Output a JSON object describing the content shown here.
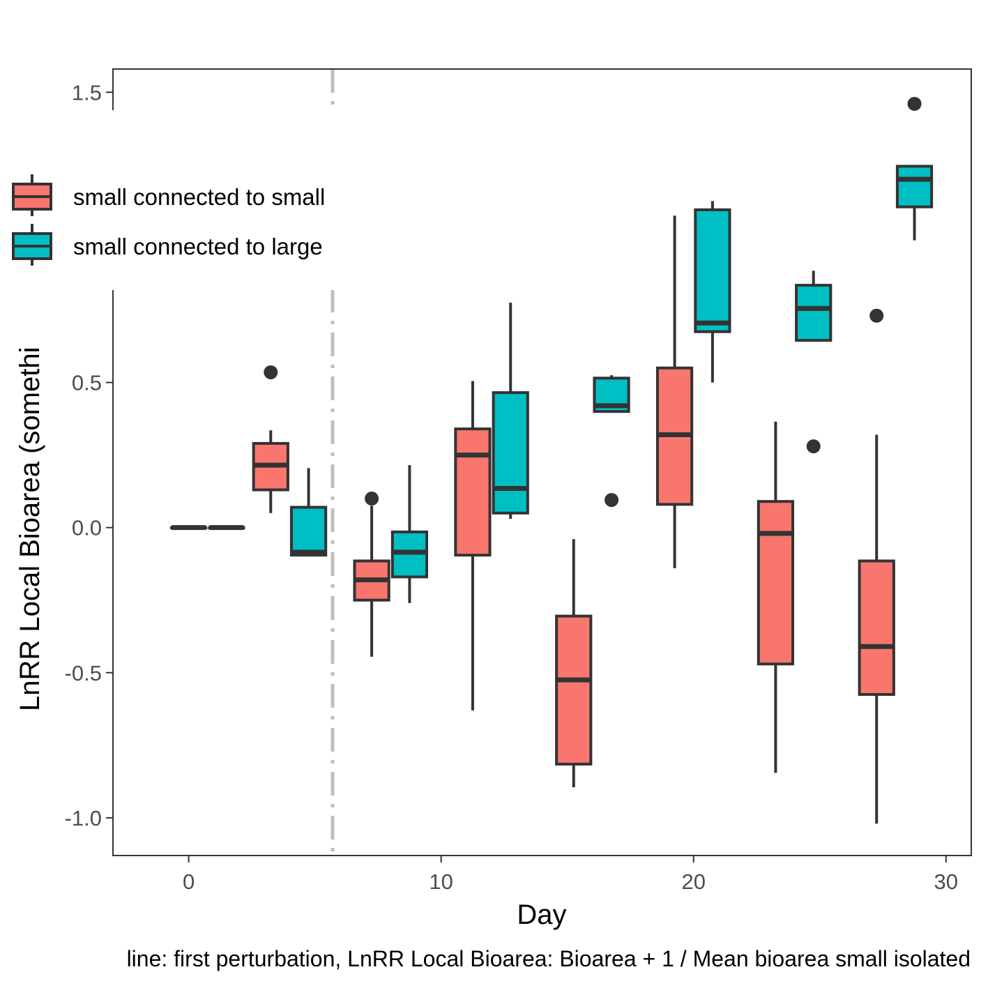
{
  "chart_data": {
    "type": "boxplot",
    "xlabel": "Day",
    "ylabel": "LnRR Local Bioarea (somethi",
    "caption": "line: first perturbation, LnRR Local Bioarea: Bioarea + 1 / Mean bioarea small isolated",
    "xlim": [
      -3,
      31
    ],
    "ylim": [
      -1.13,
      1.58
    ],
    "x_ticks": [
      0,
      10,
      20,
      30
    ],
    "x_tick_labels": [
      "0",
      "10",
      "20",
      "30"
    ],
    "y_ticks": [
      -1.0,
      -0.5,
      0.0,
      0.5,
      1.5
    ],
    "y_tick_labels": [
      "-1.0",
      "-0.5",
      "0.0",
      "0.5",
      "1.5"
    ],
    "perturbation_day": 5.7,
    "legend_placement": "top-left",
    "colors": {
      "small connected to small": "#F8766D",
      "small connected to large": "#00BFC4",
      "outline": "#333333",
      "perturbation_line": "#bebebe"
    },
    "series": [
      {
        "name": "small connected to small",
        "boxes": [
          {
            "x": 0,
            "min": 0.0,
            "q1": 0.0,
            "median": 0.0,
            "q3": 0.0,
            "max": 0.0,
            "outliers": []
          },
          {
            "x": 3.25,
            "min": 0.05,
            "q1": 0.13,
            "median": 0.215,
            "q3": 0.29,
            "max": 0.335,
            "outliers": [
              0.535
            ]
          },
          {
            "x": 7.25,
            "min": -0.445,
            "q1": -0.25,
            "median": -0.18,
            "q3": -0.115,
            "max": 0.075,
            "outliers": [
              0.1
            ]
          },
          {
            "x": 11.25,
            "min": -0.63,
            "q1": -0.095,
            "median": 0.25,
            "q3": 0.34,
            "max": 0.505,
            "outliers": []
          },
          {
            "x": 15.25,
            "min": -0.895,
            "q1": -0.815,
            "median": -0.525,
            "q3": -0.305,
            "max": -0.04,
            "outliers": []
          },
          {
            "x": 19.25,
            "min": -0.14,
            "q1": 0.08,
            "median": 0.32,
            "q3": 0.55,
            "max": 1.075,
            "outliers": []
          },
          {
            "x": 23.25,
            "min": -0.845,
            "q1": -0.47,
            "median": -0.02,
            "q3": 0.09,
            "max": 0.365,
            "outliers": []
          },
          {
            "x": 27.25,
            "min": -1.02,
            "q1": -0.575,
            "median": -0.41,
            "q3": -0.115,
            "max": 0.32,
            "outliers": [
              0.73
            ]
          }
        ]
      },
      {
        "name": "small connected to large",
        "boxes": [
          {
            "x": 1.5,
            "min": 0.0,
            "q1": 0.0,
            "median": 0.0,
            "q3": 0.0,
            "max": 0.0,
            "outliers": []
          },
          {
            "x": 4.75,
            "min": -0.095,
            "q1": -0.095,
            "median": -0.085,
            "q3": 0.07,
            "max": 0.205,
            "outliers": []
          },
          {
            "x": 8.75,
            "min": -0.26,
            "q1": -0.17,
            "median": -0.085,
            "q3": -0.015,
            "max": 0.215,
            "outliers": []
          },
          {
            "x": 12.75,
            "min": 0.03,
            "q1": 0.05,
            "median": 0.135,
            "q3": 0.465,
            "max": 0.775,
            "outliers": []
          },
          {
            "x": 16.75,
            "min": 0.4,
            "q1": 0.4,
            "median": 0.42,
            "q3": 0.515,
            "max": 0.525,
            "outliers": [
              0.095
            ]
          },
          {
            "x": 20.75,
            "min": 0.5,
            "q1": 0.675,
            "median": 0.705,
            "q3": 1.095,
            "max": 1.125,
            "outliers": []
          },
          {
            "x": 24.75,
            "min": 0.645,
            "q1": 0.645,
            "median": 0.755,
            "q3": 0.835,
            "max": 0.885,
            "outliers": [
              0.28
            ]
          },
          {
            "x": 28.75,
            "min": 0.99,
            "q1": 1.105,
            "median": 1.2,
            "q3": 1.245,
            "max": 1.245,
            "outliers": [
              1.46
            ]
          }
        ]
      }
    ]
  }
}
